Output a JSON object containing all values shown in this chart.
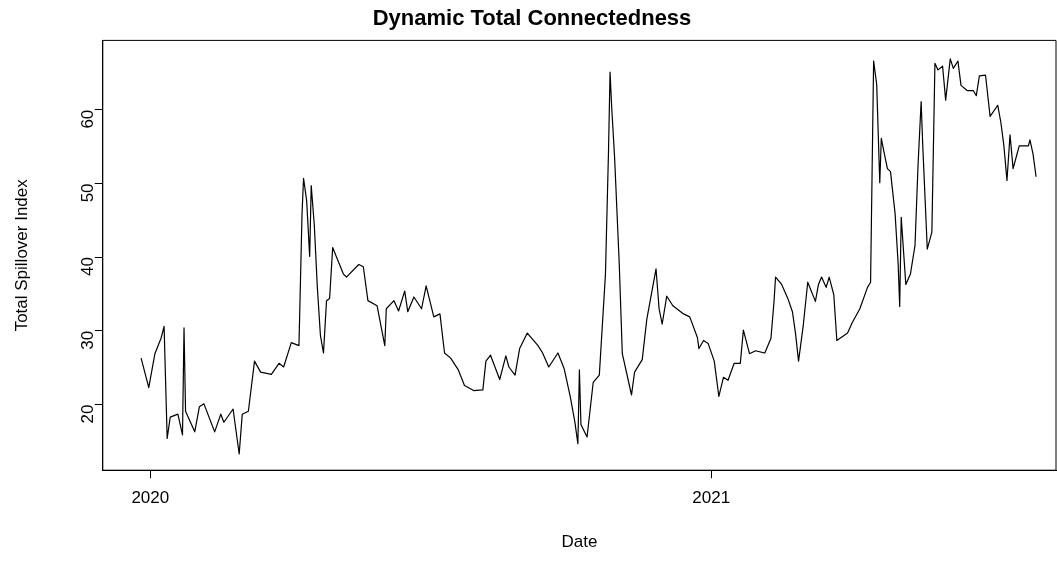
{
  "chart_data": {
    "type": "line",
    "title": "Dynamic Total Connectedness",
    "xlabel": "Date",
    "ylabel": "Total Spillover Index",
    "x": [
      "2019-12-26",
      "2019-12-31",
      "2020-01-04",
      "2020-01-08",
      "2020-01-10",
      "2020-01-11",
      "2020-01-12",
      "2020-01-14",
      "2020-01-19",
      "2020-01-22",
      "2020-01-23",
      "2020-01-24",
      "2020-01-30",
      "2020-02-02",
      "2020-02-05",
      "2020-02-12",
      "2020-02-16",
      "2020-02-18",
      "2020-02-24",
      "2020-02-28",
      "2020-03-01",
      "2020-03-05",
      "2020-03-09",
      "2020-03-13",
      "2020-03-20",
      "2020-03-25",
      "2020-03-28",
      "2020-04-02",
      "2020-04-07",
      "2020-04-08",
      "2020-04-09",
      "2020-04-10",
      "2020-04-12",
      "2020-04-14",
      "2020-04-15",
      "2020-04-17",
      "2020-04-19",
      "2020-04-21",
      "2020-04-23",
      "2020-04-25",
      "2020-04-27",
      "2020-04-29",
      "2020-05-06",
      "2020-05-08",
      "2020-05-16",
      "2020-05-19",
      "2020-05-22",
      "2020-05-28",
      "2020-06-02",
      "2020-06-03",
      "2020-06-08",
      "2020-06-11",
      "2020-06-15",
      "2020-06-17",
      "2020-06-21",
      "2020-06-26",
      "2020-06-29",
      "2020-07-04",
      "2020-07-08",
      "2020-07-11",
      "2020-07-15",
      "2020-07-20",
      "2020-07-24",
      "2020-07-30",
      "2020-08-05",
      "2020-08-07",
      "2020-08-10",
      "2020-08-16",
      "2020-08-20",
      "2020-08-22",
      "2020-08-26",
      "2020-08-29",
      "2020-09-03",
      "2020-09-10",
      "2020-09-13",
      "2020-09-17",
      "2020-09-23",
      "2020-09-27",
      "2020-10-01",
      "2020-10-04",
      "2020-10-06",
      "2020-10-07",
      "2020-10-08",
      "2020-10-12",
      "2020-10-16",
      "2020-10-20",
      "2020-10-24",
      "2020-10-26",
      "2020-10-27",
      "2020-10-28",
      "2020-10-30",
      "2020-11-02",
      "2020-11-04",
      "2020-11-10",
      "2020-11-12",
      "2020-11-17",
      "2020-11-20",
      "2020-11-26",
      "2020-11-28",
      "2020-11-30",
      "2020-12-03",
      "2020-12-07",
      "2020-12-14",
      "2020-12-18",
      "2020-12-23",
      "2020-12-24",
      "2020-12-27",
      "2020-12-30",
      "2021-01-03",
      "2021-01-06",
      "2021-01-09",
      "2021-01-12",
      "2021-01-16",
      "2021-01-20",
      "2021-01-22",
      "2021-01-26",
      "2021-01-30",
      "2021-02-05",
      "2021-02-09",
      "2021-02-11",
      "2021-02-12",
      "2021-02-16",
      "2021-02-20",
      "2021-02-23",
      "2021-02-25",
      "2021-02-27",
      "2021-03-02",
      "2021-03-05",
      "2021-03-10",
      "2021-03-12",
      "2021-03-14",
      "2021-03-17",
      "2021-03-19",
      "2021-03-22",
      "2021-03-24",
      "2021-03-31",
      "2021-04-03",
      "2021-04-08",
      "2021-04-13",
      "2021-04-15",
      "2021-04-16",
      "2021-04-17",
      "2021-04-19",
      "2021-04-21",
      "2021-04-22",
      "2021-04-24",
      "2021-04-26",
      "2021-04-28",
      "2021-05-01",
      "2021-05-03",
      "2021-05-04",
      "2021-05-05",
      "2021-05-08",
      "2021-05-11",
      "2021-05-14",
      "2021-05-16",
      "2021-05-18",
      "2021-05-19",
      "2021-05-22",
      "2021-05-25",
      "2021-05-27",
      "2021-05-29",
      "2021-06-01",
      "2021-06-03",
      "2021-06-06",
      "2021-06-08",
      "2021-06-11",
      "2021-06-13",
      "2021-06-17",
      "2021-06-21",
      "2021-06-23",
      "2021-06-25",
      "2021-06-29",
      "2021-07-02",
      "2021-07-07",
      "2021-07-09",
      "2021-07-11",
      "2021-07-13",
      "2021-07-15",
      "2021-07-17",
      "2021-07-21",
      "2021-07-27",
      "2021-07-28",
      "2021-07-30",
      "2021-08-01"
    ],
    "series": [
      {
        "color": "#000000",
        "values": [
          26.3,
          22.3,
          26.9,
          29,
          30.6,
          23,
          15.4,
          18.3,
          18.7,
          15.9,
          30.4,
          19.1,
          16.3,
          19.7,
          20.1,
          16.3,
          18.7,
          17.6,
          19.4,
          13.3,
          18.7,
          19.1,
          25.9,
          24.4,
          24.1,
          25.6,
          25.1,
          28.4,
          28,
          36.9,
          45.9,
          50.7,
          47.7,
          40.1,
          49.7,
          44.4,
          35.9,
          29.4,
          27,
          34.1,
          34.4,
          41.3,
          37.7,
          37.3,
          39,
          38.7,
          34.1,
          33.4,
          28,
          33,
          34.1,
          32.7,
          35.4,
          32.6,
          34.6,
          33,
          36.1,
          31.9,
          32.3,
          27,
          26.3,
          24.7,
          22.6,
          21.9,
          22,
          25.9,
          26.7,
          23.4,
          26.6,
          25.1,
          24,
          27.6,
          29.7,
          28,
          27,
          25.1,
          27,
          24.9,
          21.1,
          17.7,
          14.7,
          24.7,
          17.3,
          15.6,
          23,
          24,
          37.7,
          54.4,
          65.1,
          60.6,
          53.4,
          39.1,
          26.9,
          21.3,
          24.4,
          26.1,
          31.6,
          38.4,
          33,
          30.9,
          34.7,
          33.4,
          32.3,
          31.9,
          29.1,
          27.6,
          28.7,
          28.3,
          25.9,
          21.1,
          23.7,
          23.3,
          25.6,
          25.6,
          30.1,
          26.9,
          27.3,
          27,
          29,
          34,
          37.3,
          36.3,
          34.4,
          32.6,
          29.7,
          25.9,
          30.6,
          36.6,
          34,
          36.3,
          37.3,
          35.9,
          37.3,
          34.9,
          28.7,
          29.7,
          31.1,
          33,
          35.9,
          36.6,
          51.6,
          66.6,
          63.4,
          50.1,
          56.1,
          54,
          52,
          51.6,
          45.9,
          39.1,
          33.3,
          45.4,
          36.3,
          37.7,
          41.6,
          52.6,
          61.1,
          55.4,
          41.1,
          43.4,
          66.3,
          65.4,
          65.9,
          61.3,
          66.9,
          65.6,
          66.6,
          63.3,
          62.6,
          62.6,
          61.9,
          64.6,
          64.7,
          59.1,
          60.6,
          58.3,
          55.1,
          50.4,
          56.6,
          52,
          55.1,
          55.1,
          55.9,
          54,
          50.9
        ]
      }
    ],
    "xlim": [
      "2019-12-01",
      "2021-08-14"
    ],
    "xticks": [
      {
        "value": "2020-01-01",
        "label": "2020"
      },
      {
        "value": "2021-01-01",
        "label": "2021"
      }
    ],
    "ylim": [
      11.1,
      69.4
    ],
    "yticks": [
      20,
      30,
      40,
      50,
      60
    ],
    "grid": false,
    "legend": false,
    "marker": "none",
    "line_style": "solid"
  }
}
